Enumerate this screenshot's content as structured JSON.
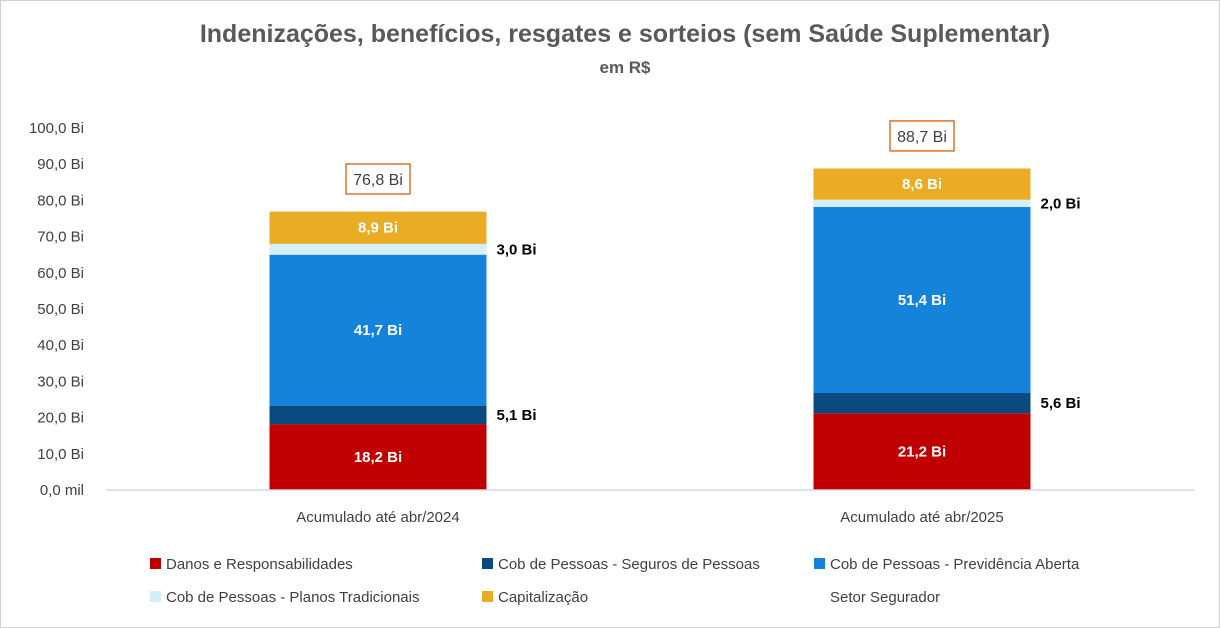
{
  "chart_data": {
    "type": "bar",
    "stacked": true,
    "title": "Indenizações, benefícios, resgates e sorteios (sem Saúde Suplementar)",
    "subtitle": "em R$",
    "categories": [
      "Acumulado até abr/2024",
      "Acumulado até abr/2025"
    ],
    "ylim": [
      0,
      100
    ],
    "yticks": [
      0,
      10,
      20,
      30,
      40,
      50,
      60,
      70,
      80,
      90,
      100
    ],
    "ytick_labels": [
      "0,0 mil",
      "10,0 Bi",
      "20,0 Bi",
      "30,0 Bi",
      "40,0 Bi",
      "50,0 Bi",
      "60,0 Bi",
      "70,0 Bi",
      "80,0 Bi",
      "90,0 Bi",
      "100,0 Bi"
    ],
    "grid": false,
    "legend_position": "bottom",
    "series": [
      {
        "name": "Danos e Responsabilidades",
        "values": [
          18.2,
          21.2
        ],
        "labels": [
          "18,2 Bi",
          "21,2 Bi"
        ],
        "color": "#C00000",
        "label_color": "#ffffff",
        "label_inside": true
      },
      {
        "name": "Cob de Pessoas - Seguros de Pessoas",
        "values": [
          5.1,
          5.6
        ],
        "labels": [
          "5,1 Bi",
          "5,6 Bi"
        ],
        "color": "#0B4A7E",
        "label_color": "#000000",
        "label_inside": false
      },
      {
        "name": "Cob de Pessoas - Previdência Aberta",
        "values": [
          41.7,
          51.4
        ],
        "labels": [
          "41,7 Bi",
          "51,4 Bi"
        ],
        "color": "#1683DB",
        "label_color": "#ffffff",
        "label_inside": true
      },
      {
        "name": "Cob de Pessoas - Planos Tradicionais",
        "values": [
          3.0,
          2.0
        ],
        "labels": [
          "3,0 Bi",
          "2,0 Bi"
        ],
        "color": "#D6EEF8",
        "label_color": "#000000",
        "label_inside": false
      },
      {
        "name": "Capitalização",
        "values": [
          8.9,
          8.6
        ],
        "labels": [
          "8,9 Bi",
          "8,6 Bi"
        ],
        "color": "#E9AC24",
        "label_color": "#ffffff",
        "label_inside": true
      }
    ],
    "totals": {
      "name": "Setor Segurador",
      "values": [
        76.8,
        88.7
      ],
      "labels": [
        "76,8 Bi",
        "88,7 Bi"
      ],
      "box_color": "#E07B39"
    }
  }
}
